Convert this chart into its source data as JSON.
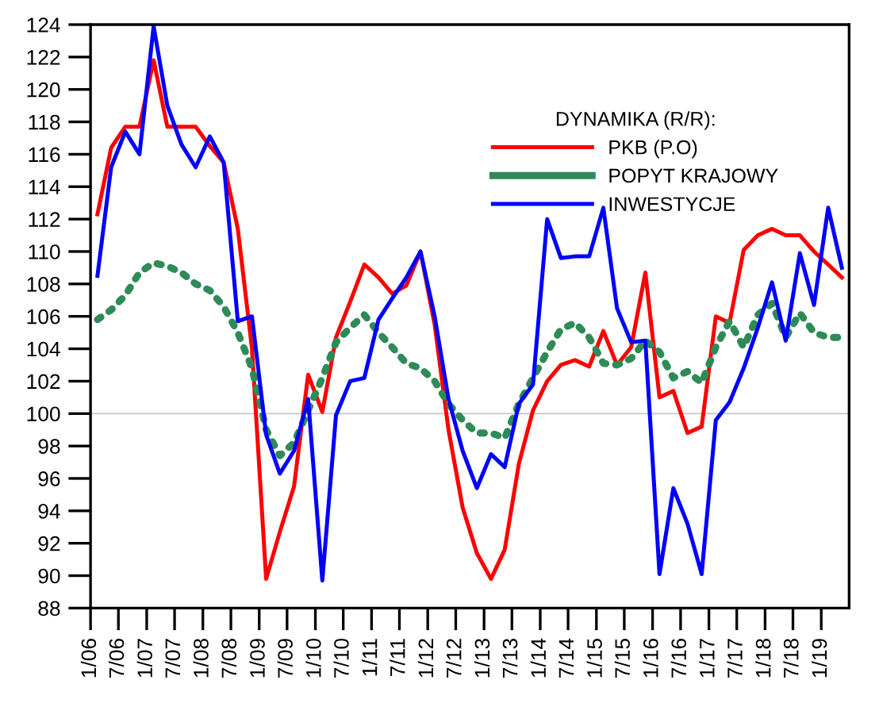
{
  "chart_data": {
    "type": "line",
    "legend_title": "DYNAMIKA (R/R):",
    "legend": "top right",
    "grid": false,
    "marker": "none",
    "x": [
      "2006-02-15",
      "2006-05-15",
      "2006-08-15",
      "2006-11-15",
      "2007-02-15",
      "2007-05-15",
      "2007-08-15",
      "2007-11-15",
      "2008-02-15",
      "2008-05-15",
      "2008-08-15",
      "2008-11-15",
      "2009-02-15",
      "2009-05-15",
      "2009-08-15",
      "2009-11-15",
      "2010-02-15",
      "2010-05-15",
      "2010-08-15",
      "2010-11-15",
      "2011-02-15",
      "2011-05-15",
      "2011-08-15",
      "2011-11-15",
      "2012-02-15",
      "2012-05-15",
      "2012-08-15",
      "2012-11-15",
      "2013-02-15",
      "2013-05-15",
      "2013-08-15",
      "2013-11-15",
      "2014-02-15",
      "2014-05-15",
      "2014-08-15",
      "2014-11-15",
      "2015-02-15",
      "2015-05-15",
      "2015-08-15",
      "2015-11-15",
      "2016-02-15",
      "2016-05-15",
      "2016-08-15",
      "2016-11-15",
      "2017-02-15",
      "2017-05-15",
      "2017-08-15",
      "2017-11-15",
      "2018-02-15",
      "2018-05-15",
      "2018-08-15",
      "2018-11-15",
      "2019-02-15",
      "2019-05-15"
    ],
    "series": [
      {
        "name": "PKB (P.O)",
        "color": "#ff0000",
        "line_style": "solid",
        "values": [
          112.3,
          116.4,
          117.7,
          117.7,
          121.8,
          117.7,
          117.7,
          117.7,
          116.5,
          115.5,
          111.4,
          104,
          89.8,
          92.7,
          95.5,
          102.4,
          100.1,
          104.7,
          106.9,
          109.2,
          108.4,
          107.4,
          107.9,
          110,
          105.5,
          99,
          94.2,
          91.4,
          89.8,
          91.6,
          96.9,
          100.2,
          102,
          103,
          103.3,
          102.9,
          105.1,
          103,
          104.1,
          108.7,
          101,
          101.4,
          98.8,
          99.2,
          106,
          105.6,
          110.1,
          111,
          111.4,
          111,
          111,
          110,
          109.2,
          108.4
        ]
      },
      {
        "name": "POPYT KRAJOWY",
        "color": "#2e8b57",
        "line_style": "dotted",
        "values": [
          105.8,
          106.4,
          107.3,
          108.7,
          109.3,
          109.1,
          108.7,
          108,
          107.6,
          106.6,
          105,
          102.8,
          99,
          97.4,
          98.2,
          100.2,
          102.2,
          104.4,
          105.3,
          106.1,
          105,
          104.1,
          103.1,
          102.8,
          102,
          100.6,
          99.6,
          98.8,
          98.8,
          98.5,
          100.6,
          102.2,
          103.8,
          105.2,
          105.6,
          104.7,
          103.1,
          103,
          103.4,
          104.5,
          103.8,
          102.2,
          102.6,
          101.9,
          104.1,
          105.7,
          104.1,
          106.1,
          106.8,
          104.7,
          106.2,
          105,
          104.7,
          104.7
        ]
      },
      {
        "name": "INWESTYCJE",
        "color": "#0000ff",
        "line_style": "solid",
        "values": [
          108.5,
          115.2,
          117.4,
          116,
          123.9,
          119,
          116.6,
          115.2,
          117.1,
          115.5,
          105.7,
          106,
          98.7,
          96.3,
          97.7,
          100.9,
          89.7,
          99.9,
          102,
          102.2,
          105.8,
          107.1,
          108.4,
          110,
          106,
          100.9,
          97.7,
          95.4,
          97.5,
          96.7,
          100.6,
          101.8,
          112,
          109.6,
          109.7,
          109.7,
          112.7,
          106.5,
          104.4,
          104.5,
          90.1,
          95.4,
          93.2,
          90.1,
          99.6,
          100.7,
          102.8,
          105.3,
          108.1,
          104.5,
          109.9,
          106.7,
          112.7,
          109
        ]
      }
    ],
    "xlim": [
      "2006-01-01",
      "2019-07-01"
    ],
    "xticks": [
      {
        "value": "2006-01-01",
        "label": "1/06"
      },
      {
        "value": "2006-07-01",
        "label": "7/06"
      },
      {
        "value": "2007-01-01",
        "label": "1/07"
      },
      {
        "value": "2007-07-01",
        "label": "7/07"
      },
      {
        "value": "2008-01-01",
        "label": "1/08"
      },
      {
        "value": "2008-07-01",
        "label": "7/08"
      },
      {
        "value": "2009-01-01",
        "label": "1/09"
      },
      {
        "value": "2009-07-01",
        "label": "7/09"
      },
      {
        "value": "2010-01-01",
        "label": "1/10"
      },
      {
        "value": "2010-07-01",
        "label": "7/10"
      },
      {
        "value": "2011-01-01",
        "label": "1/11"
      },
      {
        "value": "2011-07-01",
        "label": "7/11"
      },
      {
        "value": "2012-01-01",
        "label": "1/12"
      },
      {
        "value": "2012-07-01",
        "label": "7/12"
      },
      {
        "value": "2013-01-01",
        "label": "1/13"
      },
      {
        "value": "2013-07-01",
        "label": "7/13"
      },
      {
        "value": "2014-01-01",
        "label": "1/14"
      },
      {
        "value": "2014-07-01",
        "label": "7/14"
      },
      {
        "value": "2015-01-01",
        "label": "1/15"
      },
      {
        "value": "2015-07-01",
        "label": "7/15"
      },
      {
        "value": "2016-01-01",
        "label": "1/16"
      },
      {
        "value": "2016-07-01",
        "label": "7/16"
      },
      {
        "value": "2017-01-01",
        "label": "1/17"
      },
      {
        "value": "2017-07-01",
        "label": "7/17"
      },
      {
        "value": "2018-01-01",
        "label": "1/18"
      },
      {
        "value": "2018-07-01",
        "label": "7/18"
      },
      {
        "value": "2019-01-01",
        "label": "1/19"
      }
    ],
    "ylim": [
      88,
      124
    ],
    "yticks": [
      88,
      90,
      92,
      94,
      96,
      98,
      100,
      102,
      104,
      106,
      108,
      110,
      112,
      114,
      116,
      118,
      120,
      122,
      124
    ],
    "ref_lines": [
      {
        "axis": "y",
        "value": 100,
        "color": "#cccccc",
        "line_style": "solid"
      }
    ]
  }
}
